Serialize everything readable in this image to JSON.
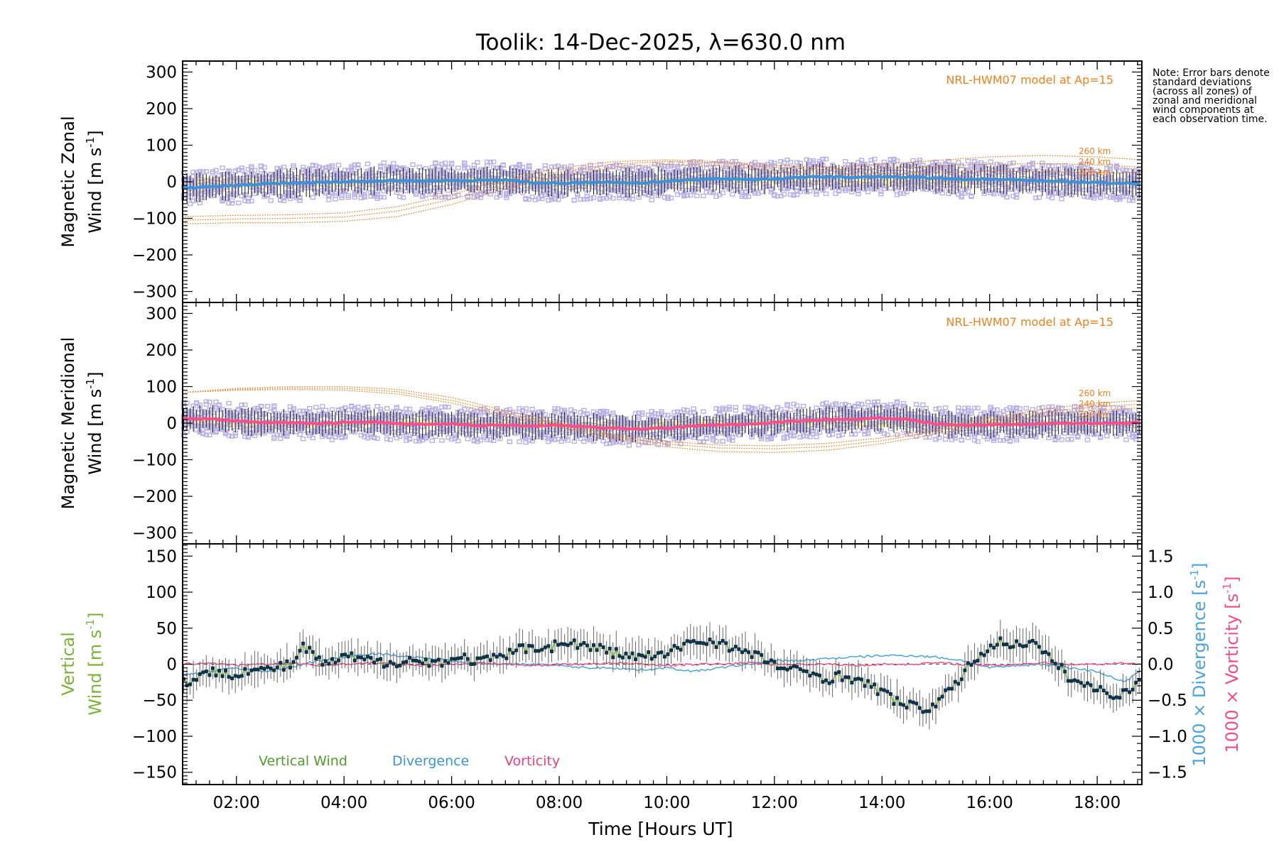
{
  "title": "Toolik: 14-Dec-2025, λ=630.0 nm",
  "note": "Note: Error bars denote standard deviations (across all zones) of zonal and meridional wind components at each observation time.",
  "colors": {
    "hwm": "#F07F1E",
    "scatter": "#B9B0E6",
    "errorbar": "#111111",
    "zonal": "#3A93D8",
    "meridional": "#FF4F86",
    "vertical": "#7BB33A",
    "vertical_point": "#0F3346",
    "divergence": "#4BA3D8",
    "vorticity": "#F04F86",
    "model_band": "#F2E6A8"
  },
  "x_axis": {
    "label": "Time [Hours UT]",
    "range_hours": [
      1.0,
      18.83
    ],
    "ticks": [
      {
        "value": 2,
        "label": "02:00"
      },
      {
        "value": 4,
        "label": "04:00"
      },
      {
        "value": 6,
        "label": "06:00"
      },
      {
        "value": 8,
        "label": "08:00"
      },
      {
        "value": 10,
        "label": "10:00"
      },
      {
        "value": 12,
        "label": "12:00"
      },
      {
        "value": 14,
        "label": "14:00"
      },
      {
        "value": 16,
        "label": "16:00"
      },
      {
        "value": 18,
        "label": "18:00"
      }
    ]
  },
  "chart_data": [
    {
      "type": "line",
      "panel": "zonal",
      "ylabel_line1": "Magnetic Zonal",
      "ylabel_line2": "Wind",
      "yunit_prefix": "[m s",
      "yunit_exp": "-1",
      "yunit_suffix": "]",
      "ylim": [
        -330,
        330
      ],
      "yticks": [
        -300,
        -200,
        -100,
        0,
        100,
        200,
        300
      ],
      "model_label": "NRL-HWM07 model at Ap=15",
      "model_altitudes": [
        "260 km",
        "240 km",
        "220 km"
      ],
      "model_curves": [
        {
          "name": "260 km",
          "x": [
            1,
            2,
            3,
            4,
            5,
            6,
            7,
            8,
            9,
            10,
            11,
            12,
            13,
            14,
            15,
            16,
            17,
            18,
            18.83
          ],
          "y": [
            -95,
            -92,
            -90,
            -85,
            -68,
            -35,
            5,
            38,
            55,
            60,
            55,
            45,
            40,
            48,
            58,
            68,
            72,
            68,
            60
          ]
        },
        {
          "name": "240 km",
          "x": [
            1,
            2,
            3,
            4,
            5,
            6,
            7,
            8,
            9,
            10,
            11,
            12,
            13,
            14,
            15,
            16,
            17,
            18,
            18.83
          ],
          "y": [
            -105,
            -102,
            -100,
            -96,
            -80,
            -48,
            -8,
            28,
            48,
            56,
            52,
            40,
            32,
            36,
            42,
            48,
            50,
            46,
            40
          ]
        },
        {
          "name": "220 km",
          "x": [
            1,
            2,
            3,
            4,
            5,
            6,
            7,
            8,
            9,
            10,
            11,
            12,
            13,
            14,
            15,
            16,
            17,
            18,
            18.83
          ],
          "y": [
            -115,
            -112,
            -112,
            -108,
            -95,
            -62,
            -20,
            16,
            38,
            48,
            44,
            30,
            22,
            22,
            26,
            28,
            28,
            26,
            24
          ]
        }
      ],
      "series": [
        {
          "name": "Zonal wind (mean)",
          "x": [
            1.0,
            1.5,
            2.0,
            2.5,
            3.0,
            3.5,
            4.0,
            4.5,
            5.0,
            5.5,
            6.0,
            6.5,
            7.0,
            7.5,
            8.0,
            8.5,
            9.0,
            9.5,
            10.0,
            10.5,
            11.0,
            11.5,
            12.0,
            12.5,
            13.0,
            13.5,
            14.0,
            14.5,
            15.0,
            15.5,
            16.0,
            16.5,
            17.0,
            17.5,
            18.0,
            18.5,
            18.83
          ],
          "y": [
            -18,
            -14,
            -10,
            -6,
            -4,
            -2,
            0,
            2,
            3,
            2,
            3,
            4,
            5,
            -2,
            -4,
            -2,
            0,
            -4,
            2,
            6,
            8,
            6,
            8,
            12,
            14,
            12,
            14,
            12,
            10,
            6,
            8,
            5,
            2,
            0,
            -2,
            -4,
            -6
          ]
        }
      ],
      "spread": 38
    },
    {
      "type": "line",
      "panel": "meridional",
      "ylabel_line1": "Magnetic Meridional",
      "ylabel_line2": "Wind",
      "yunit_prefix": "[m s",
      "yunit_exp": "-1",
      "yunit_suffix": "]",
      "ylim": [
        -330,
        330
      ],
      "yticks": [
        -300,
        -200,
        -100,
        0,
        100,
        200,
        300
      ],
      "model_label": "NRL-HWM07 model at Ap=15",
      "model_altitudes": [
        "260 km",
        "240 km",
        "220 km"
      ],
      "model_curves": [
        {
          "name": "260 km",
          "x": [
            1,
            2,
            3,
            4,
            5,
            6,
            7,
            8,
            9,
            10,
            11,
            12,
            13,
            14,
            15,
            16,
            17,
            18,
            18.83
          ],
          "y": [
            84,
            95,
            100,
            100,
            92,
            70,
            35,
            0,
            -30,
            -50,
            -60,
            -62,
            -55,
            -40,
            -15,
            15,
            38,
            55,
            62
          ]
        },
        {
          "name": "240 km",
          "x": [
            1,
            2,
            3,
            4,
            5,
            6,
            7,
            8,
            9,
            10,
            11,
            12,
            13,
            14,
            15,
            16,
            17,
            18,
            18.83
          ],
          "y": [
            84,
            92,
            96,
            95,
            86,
            62,
            28,
            -5,
            -35,
            -57,
            -68,
            -70,
            -64,
            -48,
            -22,
            8,
            30,
            45,
            52
          ]
        },
        {
          "name": "220 km",
          "x": [
            1,
            2,
            3,
            4,
            5,
            6,
            7,
            8,
            9,
            10,
            11,
            12,
            13,
            14,
            15,
            16,
            17,
            18,
            18.83
          ],
          "y": [
            84,
            90,
            92,
            90,
            80,
            55,
            20,
            -12,
            -42,
            -65,
            -78,
            -80,
            -74,
            -56,
            -30,
            0,
            20,
            35,
            42
          ]
        }
      ],
      "series": [
        {
          "name": "Meridional wind (mean)",
          "x": [
            1.0,
            1.5,
            2.0,
            2.5,
            3.0,
            3.5,
            4.0,
            4.5,
            5.0,
            5.5,
            6.0,
            6.5,
            7.0,
            7.5,
            8.0,
            8.5,
            9.0,
            9.5,
            10.0,
            10.5,
            11.0,
            11.5,
            12.0,
            12.5,
            13.0,
            13.5,
            14.0,
            14.5,
            15.0,
            15.5,
            16.0,
            16.5,
            17.0,
            17.5,
            18.0,
            18.5,
            18.83
          ],
          "y": [
            12,
            12,
            6,
            2,
            2,
            -2,
            2,
            4,
            -2,
            -4,
            -2,
            -6,
            -6,
            -8,
            -6,
            -10,
            -14,
            -16,
            -14,
            -8,
            -4,
            -4,
            2,
            6,
            10,
            10,
            14,
            10,
            -2,
            -6,
            -4,
            -4,
            -2,
            0,
            0,
            0,
            2
          ]
        }
      ],
      "spread": 36
    },
    {
      "type": "line",
      "panel": "vertical",
      "ylabel_line1": "Vertical",
      "ylabel_line2": "Wind",
      "yunit_prefix": "[m s",
      "yunit_exp": "-1",
      "yunit_suffix": "]",
      "ylim": [
        -167,
        167
      ],
      "yticks": [
        -150,
        -100,
        -50,
        0,
        50,
        100,
        150
      ],
      "y2_label": "1000 × Divergence",
      "y2_unit_prefix": "[s",
      "y2_unit_exp": "-1",
      "y2_unit_suffix": "]",
      "y3_label": "1000 × Vorticity",
      "y3_unit_prefix": "[s",
      "y3_unit_exp": "-1",
      "y3_unit_suffix": "]",
      "y2lim": [
        -1.67,
        1.67
      ],
      "y2ticks": [
        -1.5,
        -1.0,
        -0.5,
        0.0,
        0.5,
        1.0,
        1.5
      ],
      "y2ticklabels": [
        "−1.5",
        "−1.0",
        "−0.5",
        "0.0",
        "0.5",
        "1.0",
        "1.5"
      ],
      "legend": [
        "Vertical Wind",
        "Divergence",
        "Vorticity"
      ],
      "series": [
        {
          "name": "Vertical Wind",
          "x": [
            1.0,
            1.25,
            1.5,
            1.75,
            2.0,
            2.25,
            2.5,
            2.75,
            3.0,
            3.25,
            3.5,
            3.75,
            4.0,
            4.25,
            4.5,
            4.75,
            5.0,
            5.25,
            5.5,
            5.75,
            6.0,
            6.25,
            6.5,
            6.75,
            7.0,
            7.25,
            7.5,
            7.75,
            8.0,
            8.25,
            8.5,
            8.75,
            9.0,
            9.25,
            9.5,
            9.75,
            10.0,
            10.25,
            10.5,
            10.75,
            11.0,
            11.25,
            11.5,
            11.75,
            12.0,
            12.25,
            12.5,
            12.75,
            13.0,
            13.25,
            13.5,
            13.75,
            14.0,
            14.25,
            14.5,
            14.75,
            15.0,
            15.25,
            15.5,
            15.75,
            16.0,
            16.25,
            16.5,
            16.75,
            17.0,
            17.25,
            17.5,
            17.75,
            18.0,
            18.25,
            18.5,
            18.83
          ],
          "y": [
            -25,
            -20,
            -12,
            -10,
            -14,
            -6,
            -10,
            -4,
            -2,
            25,
            6,
            0,
            10,
            8,
            4,
            2,
            4,
            6,
            2,
            4,
            6,
            8,
            4,
            6,
            12,
            20,
            25,
            22,
            28,
            30,
            24,
            22,
            16,
            12,
            10,
            12,
            12,
            25,
            32,
            32,
            30,
            22,
            14,
            10,
            0,
            -8,
            -10,
            -14,
            -20,
            -16,
            -20,
            -30,
            -38,
            -50,
            -58,
            -62,
            -56,
            -38,
            -14,
            8,
            24,
            32,
            26,
            34,
            14,
            0,
            -20,
            -28,
            -36,
            -40,
            -42,
            -18
          ]
        },
        {
          "name": "Divergence",
          "x": [
            1.0,
            1.5,
            2.0,
            2.5,
            3.0,
            3.5,
            4.0,
            4.5,
            5.0,
            5.5,
            6.0,
            6.5,
            7.0,
            7.5,
            8.0,
            8.5,
            9.0,
            9.5,
            10.0,
            10.5,
            11.0,
            11.5,
            12.0,
            12.5,
            13.0,
            13.5,
            14.0,
            14.5,
            15.0,
            15.5,
            16.0,
            16.5,
            17.0,
            17.5,
            18.0,
            18.5,
            18.83
          ],
          "y": [
            -0.15,
            -0.1,
            -0.05,
            -0.1,
            -0.05,
            0.05,
            0.1,
            0.15,
            0.12,
            0.08,
            0.05,
            0.02,
            0.0,
            0.0,
            -0.02,
            -0.05,
            -0.05,
            -0.08,
            -0.05,
            -0.1,
            -0.05,
            0.0,
            0.05,
            0.05,
            0.08,
            0.1,
            0.12,
            0.12,
            0.1,
            0.05,
            -0.05,
            -0.02,
            0.0,
            -0.05,
            -0.1,
            -0.25,
            -0.08
          ]
        },
        {
          "name": "Vorticity",
          "x": [
            1.0,
            1.5,
            2.0,
            2.5,
            3.0,
            3.5,
            4.0,
            4.5,
            5.0,
            5.5,
            6.0,
            6.5,
            7.0,
            7.5,
            8.0,
            8.5,
            9.0,
            9.5,
            10.0,
            10.5,
            11.0,
            11.5,
            12.0,
            12.5,
            13.0,
            13.5,
            14.0,
            14.5,
            15.0,
            15.5,
            16.0,
            16.5,
            17.0,
            17.5,
            18.0,
            18.5,
            18.83
          ],
          "y": [
            0.0,
            0.02,
            -0.02,
            0.0,
            0.02,
            -0.02,
            0.0,
            0.02,
            0.0,
            -0.02,
            0.0,
            0.02,
            0.0,
            -0.02,
            0.0,
            0.0,
            0.02,
            0.0,
            -0.02,
            0.0,
            0.0,
            0.02,
            0.0,
            0.0,
            0.0,
            -0.02,
            0.0,
            0.0,
            0.02,
            0.0,
            -0.02,
            0.0,
            0.02,
            0.0,
            0.0,
            0.02,
            0.0
          ]
        }
      ],
      "spread": 22
    }
  ]
}
